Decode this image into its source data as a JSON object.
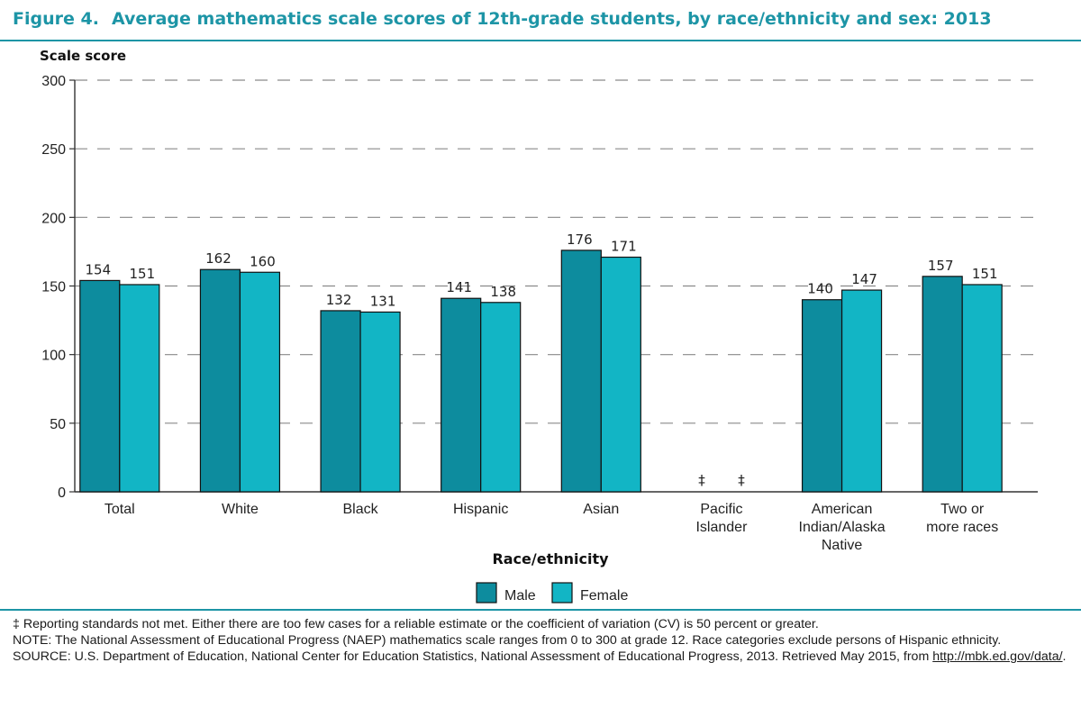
{
  "figure": {
    "number": "Figure 4.",
    "title": "Average mathematics scale scores of 12th-grade students, by race/ethnicity and sex: 2013"
  },
  "colors": {
    "male": "#0d8c9e",
    "female": "#12b5c5",
    "accent": "#1d95a6"
  },
  "chart_data": {
    "type": "bar",
    "title": "Average mathematics scale scores of 12th-grade students, by race/ethnicity and sex: 2013",
    "ylabel": "Scale score",
    "xlabel": "Race/ethnicity",
    "ylim": [
      0,
      300
    ],
    "yticks": [
      0,
      50,
      100,
      150,
      200,
      250,
      300
    ],
    "grid": "dashed horizontal",
    "legend": "bottom-center",
    "categories": [
      [
        "Total"
      ],
      [
        "White"
      ],
      [
        "Black"
      ],
      [
        "Hispanic"
      ],
      [
        "Asian"
      ],
      [
        "Pacific",
        "Islander"
      ],
      [
        "American",
        "Indian/Alaska",
        "Native"
      ],
      [
        "Two or",
        "more races"
      ]
    ],
    "series": [
      {
        "name": "Male",
        "values": [
          154,
          162,
          132,
          141,
          176,
          null,
          140,
          157
        ]
      },
      {
        "name": "Female",
        "values": [
          151,
          160,
          131,
          138,
          171,
          null,
          147,
          151
        ]
      }
    ],
    "missing_marker": "‡"
  },
  "notes": {
    "footnote": "‡ Reporting standards not met. Either there are too few cases for a reliable estimate or the coefficient of variation (CV) is 50 percent or greater.",
    "note": "NOTE: The National Assessment of Educational Progress (NAEP) mathematics scale ranges from 0 to 300 at grade 12. Race categories exclude persons of Hispanic ethnicity.",
    "source": "SOURCE: U.S. Department of Education, National Center for Education Statistics, National Assessment of Educational Progress, 2013. Retrieved May 2015, from",
    "source_link": "http://mbk.ed.gov/data/",
    "source_end": "."
  }
}
